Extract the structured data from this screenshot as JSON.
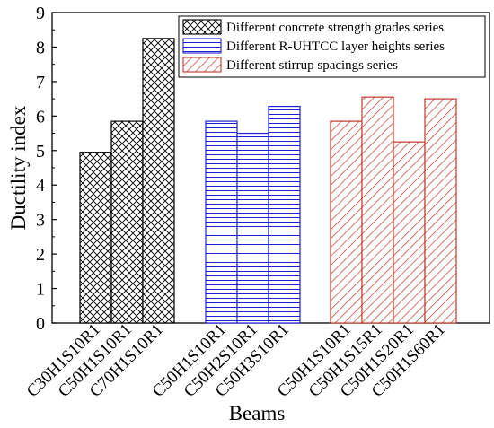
{
  "chart_data": {
    "type": "bar",
    "xlabel": "Beams",
    "ylabel": "Ductility index",
    "ylim": [
      0,
      9
    ],
    "yticks": [
      "0",
      "1",
      "2",
      "3",
      "4",
      "5",
      "6",
      "7",
      "8",
      "9"
    ],
    "grid": false,
    "legend_position": "top-right",
    "series": [
      {
        "name": "Different concrete strength grades series",
        "color": "#000000",
        "pattern": "crosshatch",
        "categories": [
          "C30H1S10R1",
          "C50H1S10R1",
          "C70H1S10R1"
        ],
        "values": [
          4.95,
          5.85,
          8.25
        ]
      },
      {
        "name": "Different R-UHTCC layer heights series",
        "color": "#1f1fd6",
        "pattern": "horizontal",
        "categories": [
          "C50H1S10R1",
          "C50H2S10R1",
          "C50H3S10R1"
        ],
        "values": [
          5.85,
          5.5,
          6.28
        ]
      },
      {
        "name": "Different stirrup spacings series",
        "color": "#c0392b",
        "pattern": "diagonal",
        "categories": [
          "C50H1S10R1",
          "C50H1S15R1",
          "C50H1S20R1",
          "C50H1S60R1"
        ],
        "values": [
          5.85,
          6.55,
          5.25,
          6.5
        ]
      }
    ]
  }
}
